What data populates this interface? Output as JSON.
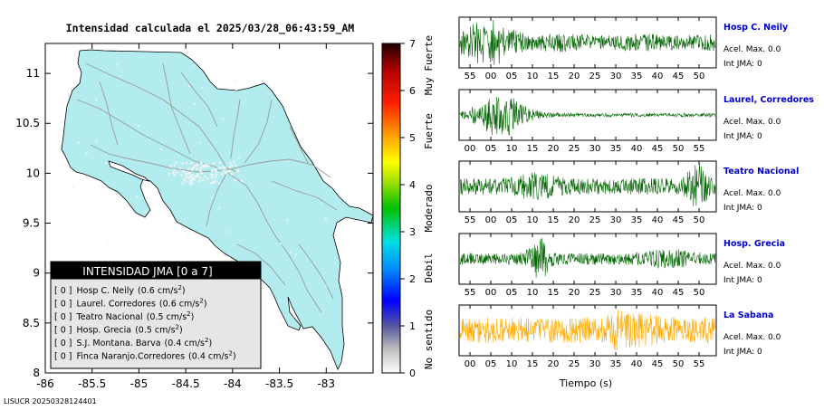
{
  "title": "Intensidad calculada el 2025/03/28_06:43:59_AM",
  "footer": "LISUCR 20250328124401",
  "legend": {
    "header": "INTENSIDAD JMA [0 a 7]",
    "rows": [
      {
        "level": "[ 0 ]",
        "station": "Hosp C. Neily",
        "accel": "(0.6 cm/s",
        "exp": "2",
        "close": ")"
      },
      {
        "level": "[ 0 ]",
        "station": "Laurel. Corredores",
        "accel": "(0.6 cm/s",
        "exp": "2",
        "close": ")"
      },
      {
        "level": "[ 0 ]",
        "station": "Teatro Nacional",
        "accel": "(0.5 cm/s",
        "exp": "2",
        "close": ")"
      },
      {
        "level": "[ 0 ]",
        "station": "Hosp. Grecia",
        "accel": "(0.5 cm/s",
        "exp": "2",
        "close": ")"
      },
      {
        "level": "[ 0 ]",
        "station": "S.J. Montana. Barva",
        "accel": "(0.4 cm/s",
        "exp": "2",
        "close": ")"
      },
      {
        "level": "[ 0 ]",
        "station": "Finca Naranjo.Corredores",
        "accel": "(0.4 cm/s",
        "exp": "2",
        "close": ")"
      }
    ]
  },
  "colorbar": {
    "ticks": [
      "0",
      "1",
      "2",
      "3",
      "4",
      "5",
      "6",
      "7"
    ],
    "labels": [
      "No sentido",
      "Debil",
      "Moderado",
      "Fuerte",
      "Muy Fuerte"
    ]
  },
  "colors": {
    "land": "#b3ecee",
    "roads": "#9a9a9a",
    "legend_bg": "#e6e6e6",
    "legend_header": "#000000",
    "trace_green": "#006400",
    "trace_orange": "#ffaa00",
    "station_name": "#0000cc"
  },
  "chart_data": [
    {
      "type": "map",
      "title": "Intensidad calculada el 2025/03/28_06:43:59_AM",
      "x_ticks": [
        "-86",
        "-85.5",
        "-85",
        "-84.5",
        "-84",
        "-83.5",
        "-83"
      ],
      "y_ticks": [
        "8",
        "8.5",
        "9",
        "9.5",
        "10",
        "10.5",
        "11"
      ],
      "xlim": [
        -86,
        -82.5
      ],
      "ylim": [
        8,
        11.3
      ],
      "stations_intensity": [
        0,
        0,
        0,
        0,
        0,
        0
      ]
    },
    {
      "type": "line",
      "xlabel": "Tiempo (s)",
      "traces": [
        {
          "name": "Hosp C. Neily",
          "acel_label": "Acel. Max. 0.0",
          "int_label": "Int JMA: 0",
          "ticks": [
            "55",
            "00",
            "05",
            "10",
            "15",
            "20",
            "25",
            "30",
            "35",
            "40",
            "45",
            "50"
          ],
          "color": "#006400",
          "envelope": "early-burst"
        },
        {
          "name": "Laurel, Corredores",
          "acel_label": "Acel. Max. 0.0",
          "int_label": "Int JMA: 0",
          "ticks": [
            "00",
            "05",
            "10",
            "15",
            "20",
            "25",
            "30",
            "35",
            "40",
            "45",
            "50",
            "55"
          ],
          "color": "#006400",
          "envelope": "burst-decay"
        },
        {
          "name": "Teatro Nacional",
          "acel_label": "Acel. Max. 0.0",
          "int_label": "Int JMA: 0",
          "ticks": [
            "55",
            "00",
            "05",
            "10",
            "15",
            "20",
            "25",
            "30",
            "35",
            "40",
            "45",
            "50"
          ],
          "color": "#006400",
          "envelope": "late-burst"
        },
        {
          "name": "Hosp. Grecia",
          "acel_label": "Acel. Max. 0.0",
          "int_label": "Int JMA: 0",
          "ticks": [
            "55",
            "00",
            "05",
            "10",
            "15",
            "20",
            "25",
            "30",
            "35",
            "40",
            "45",
            "50"
          ],
          "color": "#006400",
          "envelope": "mid-spike"
        },
        {
          "name": "La Sabana",
          "acel_label": "Acel. Max. 0.0",
          "int_label": "Int JMA: 0",
          "ticks": [
            "00",
            "05",
            "10",
            "15",
            "20",
            "25",
            "30",
            "35",
            "40",
            "45",
            "50",
            "55"
          ],
          "color": "#ffaa00",
          "envelope": "uniform"
        }
      ]
    }
  ]
}
